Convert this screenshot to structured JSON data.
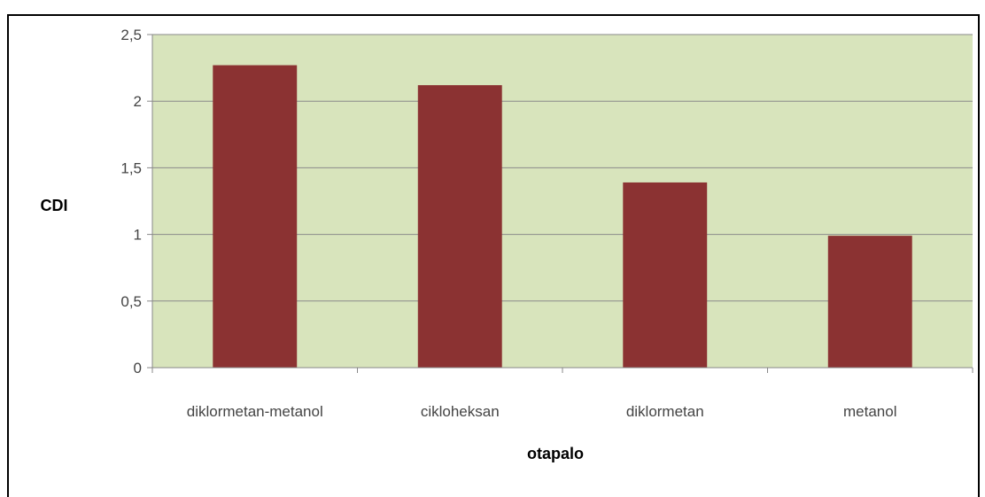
{
  "chart_data": {
    "type": "bar",
    "categories": [
      "diklormetan-metanol",
      "cikloheksan",
      "diklormetan",
      "metanol"
    ],
    "values": [
      2.27,
      2.12,
      1.39,
      0.99
    ],
    "xlabel": "otapalo",
    "ylabel": "CDI",
    "ylim": [
      0,
      2.5
    ],
    "yticks": [
      "0",
      "0,5",
      "1",
      "1,5",
      "2",
      "2,5"
    ],
    "grid": true,
    "colors": {
      "bar": "#8b3232",
      "plot_background": "#d8e4bc",
      "gridline": "#8a8a8a"
    }
  }
}
